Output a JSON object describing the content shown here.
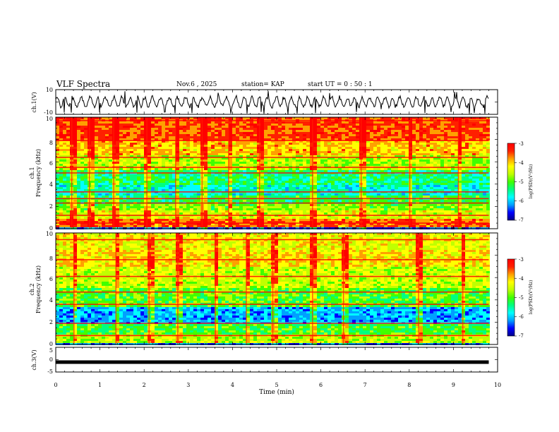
{
  "header": {
    "title": "VLF Spectra",
    "date": "Nov.6  , 2025",
    "station": "station= KAP",
    "start": "start  UT =   0 : 50 : 1"
  },
  "colors": {
    "scale": [
      "#00008b",
      "#0000ff",
      "#00a0ff",
      "#00ffff",
      "#00ff80",
      "#40ff00",
      "#c0ff00",
      "#ffff00",
      "#ffa000",
      "#ff2000",
      "#ff0000"
    ],
    "trace": "#000000"
  },
  "chart_data": [
    {
      "type": "line",
      "panel": "waveform-ch1",
      "ylabel": "ch.1(V)",
      "ylim": [
        -10,
        10
      ],
      "ytick_labels": [
        "10",
        "-10"
      ],
      "xlim": [
        0,
        10
      ],
      "series": [
        {
          "name": "ch.1",
          "description": "noisy oscillating voltage, amplitude roughly ±5 V, sharp downward spikes near -10 V"
        }
      ]
    },
    {
      "type": "heatmap",
      "panel": "spectrogram-ch1",
      "ylabel_top": "ch.1",
      "ylabel": "Frequency  (kHz)",
      "ylim": [
        0,
        10
      ],
      "ytick_labels": [
        "0",
        "2",
        "4",
        "6",
        "8",
        "10"
      ],
      "xlim": [
        0,
        9.8
      ],
      "colorbar": {
        "label": "log(PSD)(V²/Hz)",
        "range": [
          -7,
          -3
        ],
        "tick_labels": [
          "-3",
          "-4",
          "-5",
          "-6",
          "-7"
        ]
      },
      "bands": [
        {
          "from": 0.0,
          "to": 0.3,
          "level": -6.5
        },
        {
          "from": 0.3,
          "to": 0.9,
          "level": -3.6
        },
        {
          "from": 0.9,
          "to": 1.8,
          "level": -4.4
        },
        {
          "from": 1.8,
          "to": 2.4,
          "level": -4.8
        },
        {
          "from": 2.4,
          "to": 3.0,
          "level": -5.2
        },
        {
          "from": 3.0,
          "to": 4.0,
          "level": -5.7
        },
        {
          "from": 4.0,
          "to": 5.3,
          "level": -5.4
        },
        {
          "from": 5.3,
          "to": 6.6,
          "level": -4.6
        },
        {
          "from": 6.6,
          "to": 8.0,
          "level": -4.0
        },
        {
          "from": 8.0,
          "to": 10.0,
          "level": -3.5
        }
      ],
      "lines_khz": [
        0.5,
        1.2,
        2.3,
        2.7,
        3.3,
        5.0,
        5.5,
        6.4,
        7.9,
        9.7
      ],
      "bursts_min": [
        0.35,
        0.75,
        1.3,
        2.05,
        2.7,
        3.3,
        3.9,
        4.6,
        5.8,
        6.9,
        8.0,
        9.1
      ]
    },
    {
      "type": "heatmap",
      "panel": "spectrogram-ch2",
      "ylabel_top": "ch.2",
      "ylabel": "Frequency  (kHz)",
      "ylim": [
        0,
        10
      ],
      "ytick_labels": [
        "0",
        "2",
        "4",
        "6",
        "8",
        "10"
      ],
      "xlim": [
        0,
        9.8
      ],
      "colorbar": {
        "label": "log(PSD)(V²/Hz)",
        "range": [
          -7,
          -3
        ],
        "tick_labels": [
          "-3",
          "-4",
          "-5",
          "-6",
          "-7"
        ]
      },
      "bands": [
        {
          "from": 0.0,
          "to": 0.3,
          "level": -6.3
        },
        {
          "from": 0.3,
          "to": 1.0,
          "level": -4.6
        },
        {
          "from": 1.0,
          "to": 2.0,
          "level": -5.1
        },
        {
          "from": 2.0,
          "to": 3.4,
          "level": -6.1
        },
        {
          "from": 3.4,
          "to": 5.2,
          "level": -5.0
        },
        {
          "from": 5.2,
          "to": 7.0,
          "level": -4.5
        },
        {
          "from": 7.0,
          "to": 8.6,
          "level": -4.1
        },
        {
          "from": 8.6,
          "to": 10.0,
          "level": -4.3
        }
      ],
      "lines_khz": [
        0.8,
        1.9,
        3.6,
        4.7,
        6.1,
        7.6,
        9.4
      ],
      "bursts_min": [
        0.4,
        1.35,
        2.1,
        2.75,
        3.6,
        4.3,
        4.9,
        5.8,
        6.5,
        8.2,
        9.2
      ]
    },
    {
      "type": "line",
      "panel": "waveform-ch3",
      "ylabel": "ch.3(V)",
      "ylim": [
        -5,
        5
      ],
      "ytick_labels": [
        "5",
        "0",
        "-5"
      ],
      "xlim": [
        0,
        10
      ],
      "series": [
        {
          "name": "ch.3",
          "description": "flat dense signal near -1 V, thick black band"
        }
      ],
      "level": -1.0,
      "xlabel": "Time  (min)",
      "xtick_labels": [
        "0",
        "1",
        "2",
        "3",
        "4",
        "5",
        "6",
        "7",
        "8",
        "9",
        "10"
      ]
    }
  ]
}
